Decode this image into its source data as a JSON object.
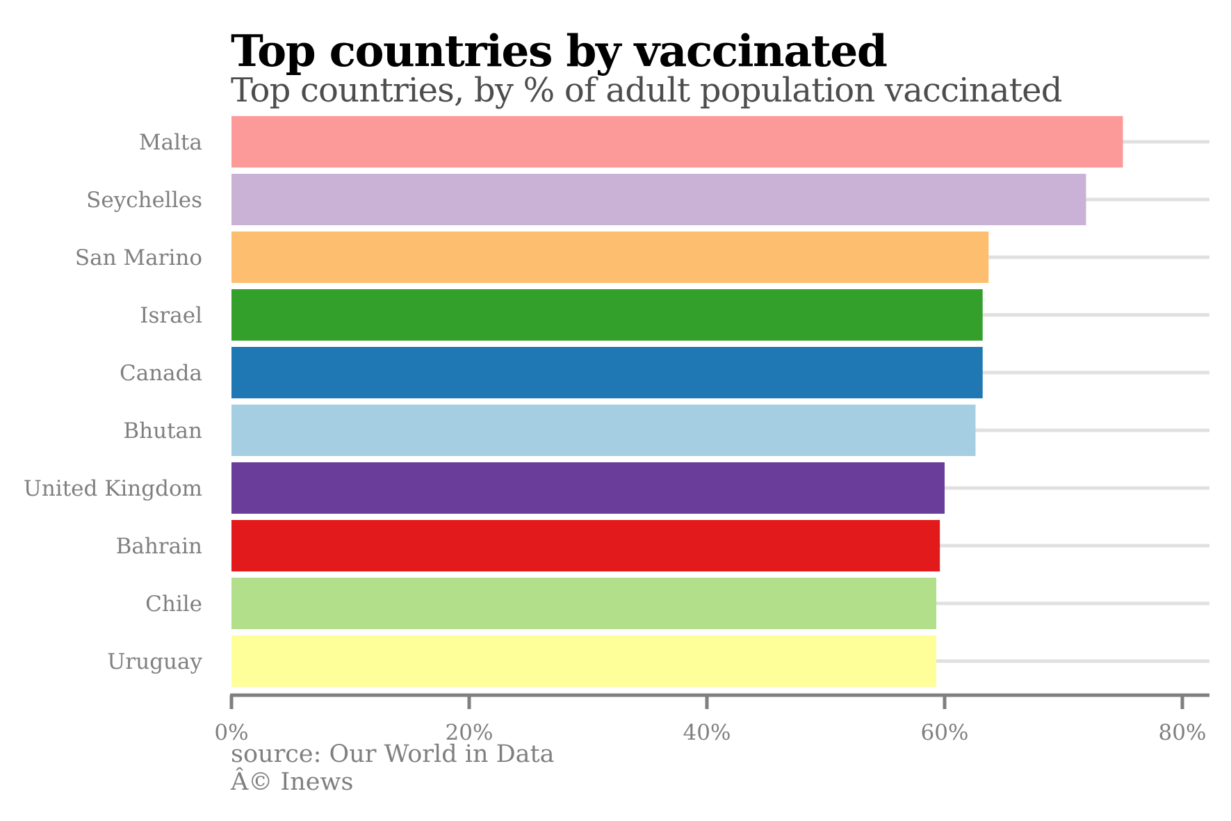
{
  "title": "Top countries by vaccinated",
  "subtitle": "Top countries, by % of adult population vaccinated",
  "caption_source": "source: Our World in Data",
  "caption_credit": "Â© Inews",
  "colors": {
    "grid": "#e0e0e0",
    "axis": "#7f7f7f",
    "label": "#7f7f7f"
  },
  "chart_data": {
    "type": "bar",
    "orientation": "horizontal",
    "title": "Top countries by vaccinated",
    "subtitle": "Top countries, by % of adult population vaccinated",
    "xlabel": "",
    "ylabel": "",
    "xlim": [
      0,
      82
    ],
    "x_ticks": [
      0,
      20,
      40,
      60,
      80
    ],
    "x_tick_labels": [
      "0%",
      "20%",
      "40%",
      "60%",
      "80%"
    ],
    "grid": "horizontal lines at each category",
    "legend": "none",
    "categories": [
      "Malta",
      "Seychelles",
      "San Marino",
      "Israel",
      "Canada",
      "Bhutan",
      "United Kingdom",
      "Bahrain",
      "Chile",
      "Uruguay"
    ],
    "values": [
      75.0,
      71.9,
      63.7,
      63.2,
      63.2,
      62.6,
      60.0,
      59.6,
      59.3,
      59.3
    ],
    "bar_colors": [
      "#fb9a99",
      "#cab2d6",
      "#fdbf6f",
      "#33a02c",
      "#1f78b4",
      "#a6cee3",
      "#6a3d9a",
      "#e31a1c",
      "#b2df8a",
      "#ffff99"
    ]
  }
}
